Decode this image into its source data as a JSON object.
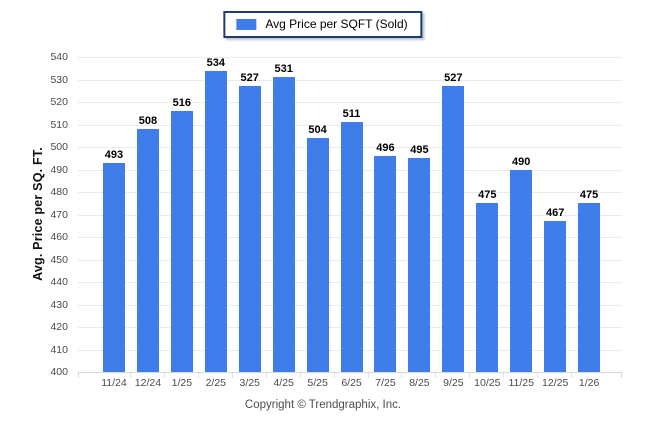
{
  "legend": {
    "label": "Avg Price per SQFT (Sold)",
    "swatch_color": "#3F7EEA"
  },
  "chart_data": {
    "type": "bar",
    "title": "",
    "categories": [
      "11/24",
      "12/24",
      "1/25",
      "2/25",
      "3/25",
      "4/25",
      "5/25",
      "6/25",
      "7/25",
      "8/25",
      "9/25",
      "10/25",
      "11/25",
      "12/25",
      "1/26"
    ],
    "values": [
      493,
      508,
      516,
      534,
      527,
      531,
      504,
      511,
      496,
      495,
      527,
      475,
      490,
      467,
      475
    ],
    "xlabel": "",
    "ylabel": "Avg. Price per SQ. FT.",
    "ylim": [
      400,
      540
    ],
    "ytick_step": 10,
    "grid": true,
    "legend_position": "top-center",
    "bar_color": "#3F7EEA"
  },
  "footer": {
    "copyright": "Copyright © Trendgraphix, Inc."
  }
}
